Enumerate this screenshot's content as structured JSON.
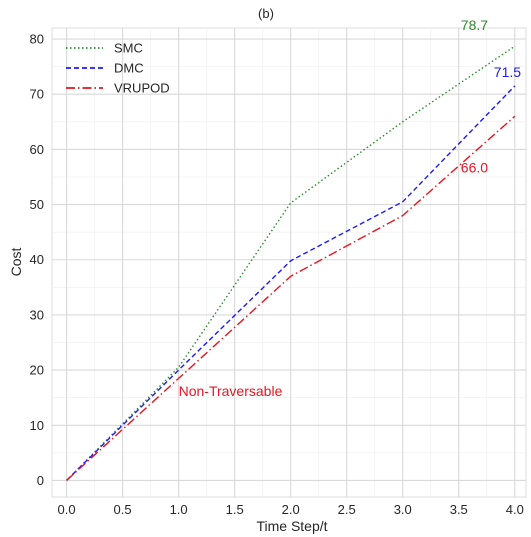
{
  "chart_data": {
    "type": "line",
    "title": "(b)",
    "xlabel": "Time Step/t",
    "ylabel": "Cost",
    "xlim": [
      -0.13,
      4.1
    ],
    "ylim": [
      -3,
      82
    ],
    "x_ticks": [
      "0.0",
      "0.5",
      "1.0",
      "1.5",
      "2.0",
      "2.5",
      "3.0",
      "3.5",
      "4.0"
    ],
    "y_ticks": [
      "0",
      "10",
      "20",
      "30",
      "40",
      "50",
      "60",
      "70",
      "80"
    ],
    "grid": true,
    "legend_position": "top-left",
    "x": [
      0,
      1,
      2,
      3,
      4
    ],
    "series": [
      {
        "name": "SMC",
        "values": [
          0,
          20.5,
          50.3,
          65.0,
          78.7
        ],
        "color": "#2e8b2e",
        "dash": "dotted"
      },
      {
        "name": "DMC",
        "values": [
          0,
          20.0,
          39.8,
          50.5,
          71.5
        ],
        "color": "#1a1aff",
        "dash": "dashed"
      },
      {
        "name": "VRUPOD",
        "values": [
          0,
          18.5,
          37.0,
          48.0,
          66.0
        ],
        "color": "#e8141e",
        "dash": "dashdot"
      }
    ],
    "annotations": [
      {
        "text": "78.7",
        "x": 4.0,
        "y": 78.7,
        "color": "#2e8b2e"
      },
      {
        "text": "71.5",
        "x": 4.0,
        "y": 71.5,
        "color": "#1a1aff"
      },
      {
        "text": "66.0",
        "x": 4.0,
        "y": 66.0,
        "color": "#e8141e"
      },
      {
        "text": "Non-Traversable",
        "x": 1.0,
        "y": 16,
        "color": "#e8141e"
      }
    ]
  }
}
